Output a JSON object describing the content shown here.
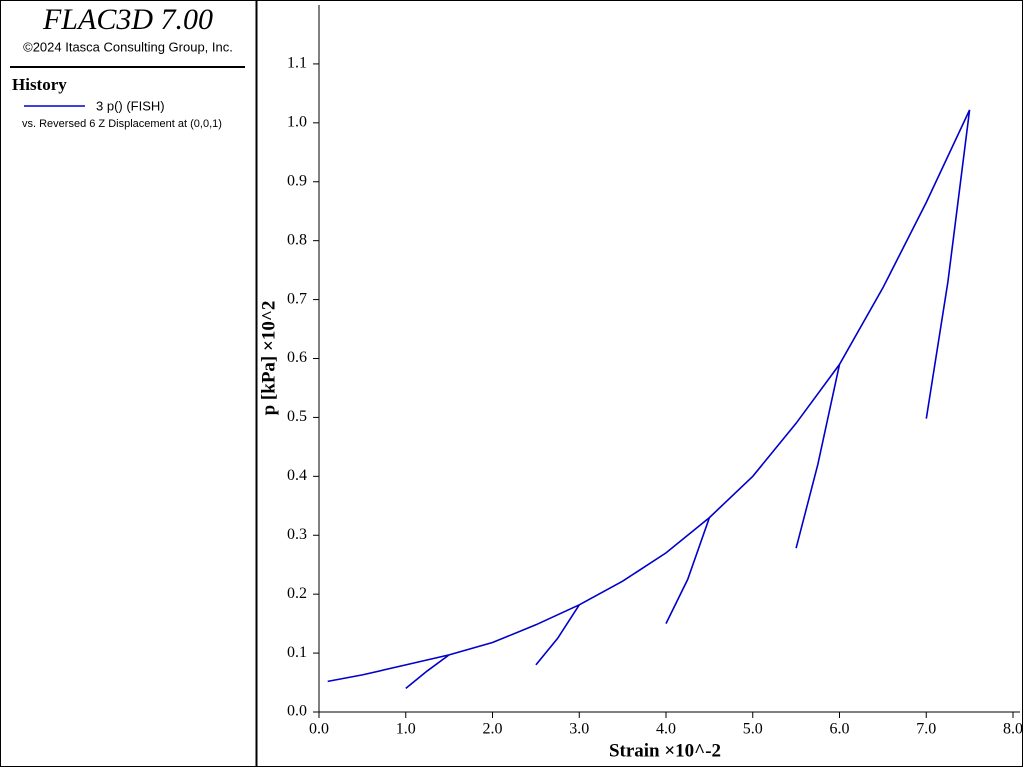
{
  "app": {
    "title": "FLAC3D 7.00",
    "copyright": "©2024 Itasca Consulting Group, Inc.",
    "section": "History"
  },
  "chart_data": {
    "type": "line",
    "xlabel": "Strain ×10^-2",
    "ylabel": "p [kPa] ×10^2",
    "legend_note": "vs. Reversed 6 Z Displacement at (0,0,1)",
    "xlim": [
      0,
      8.0
    ],
    "ylim": [
      0,
      1.2
    ],
    "xticks": [
      {
        "value": 0,
        "label": "0.0"
      },
      {
        "value": 1,
        "label": "1.0"
      },
      {
        "value": 2,
        "label": "2.0"
      },
      {
        "value": 3,
        "label": "3.0"
      },
      {
        "value": 4,
        "label": "4.0"
      },
      {
        "value": 5,
        "label": "5.0"
      },
      {
        "value": 6,
        "label": "6.0"
      },
      {
        "value": 7,
        "label": "7.0"
      },
      {
        "value": 8,
        "label": "8.0"
      }
    ],
    "yticks": [
      {
        "value": 0,
        "label": "0.0"
      },
      0.1,
      0.2,
      0.3,
      0.4,
      0.5,
      0.6,
      0.7,
      0.8,
      0.9,
      {
        "value": 1,
        "label": "1.0"
      },
      1.1
    ],
    "x": [
      0.1,
      0.5,
      1.0,
      1.5,
      2.0,
      2.5,
      3.0,
      3.5,
      4.0,
      4.5,
      5.0,
      5.5,
      6.0,
      6.5,
      7.0,
      7.5,
      null,
      1.0,
      1.25,
      1.5,
      null,
      2.5,
      2.75,
      3.0,
      null,
      4.0,
      4.25,
      4.5,
      null,
      5.5,
      5.75,
      6.0,
      null,
      7.0,
      7.25,
      7.5
    ],
    "series": [
      {
        "name": "3 p() (FISH)",
        "color": "#0000cc",
        "values": [
          0.052,
          0.063,
          0.08,
          0.097,
          0.118,
          0.148,
          0.182,
          0.222,
          0.27,
          0.33,
          0.4,
          0.49,
          0.59,
          0.72,
          0.865,
          1.022,
          null,
          0.04,
          0.07,
          0.097,
          null,
          0.08,
          0.125,
          0.182,
          null,
          0.15,
          0.225,
          0.33,
          null,
          0.278,
          0.42,
          0.59,
          null,
          0.498,
          0.73,
          1.022
        ]
      }
    ]
  }
}
